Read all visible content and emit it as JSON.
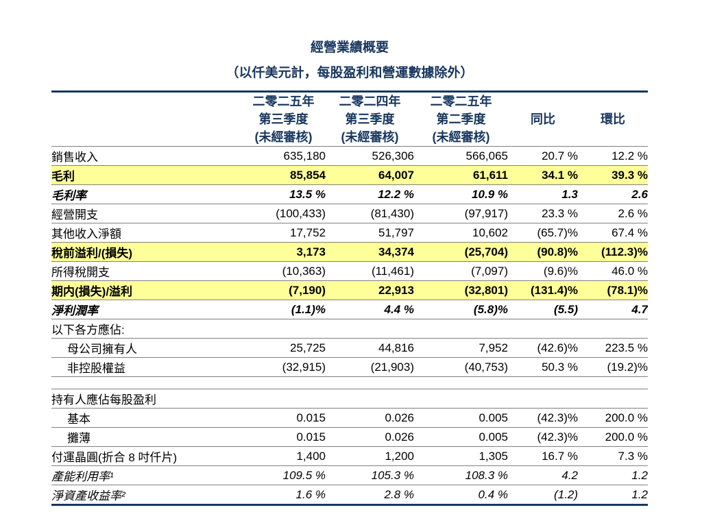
{
  "title": "經營業績概要",
  "subtitle": "（以仟美元計，每股盈利和營運數據除外）",
  "columns": [
    {
      "lines": [
        "二零二五年",
        "第三季度",
        "(未經審核)"
      ]
    },
    {
      "lines": [
        "二零二四年",
        "第三季度",
        "(未經審核)"
      ]
    },
    {
      "lines": [
        "二零二五年",
        "第二季度",
        "(未經審核)"
      ]
    },
    {
      "lines": [
        "同比"
      ]
    },
    {
      "lines": [
        "環比"
      ]
    }
  ],
  "rows": [
    {
      "label": "銷售收入",
      "values": [
        "635,180",
        "526,306",
        "566,065",
        "20.7 %",
        "12.2 %"
      ],
      "style": "normal",
      "indent": false
    },
    {
      "label": "毛利",
      "values": [
        "85,854",
        "64,007",
        "61,611",
        "34.1 %",
        "39.3 %"
      ],
      "style": "highlight-bold",
      "indent": false
    },
    {
      "label": "毛利率",
      "values": [
        "13.5 %",
        "12.2 %",
        "10.9 %",
        "1.3",
        "2.6"
      ],
      "style": "bold-italic",
      "indent": false
    },
    {
      "label": "經營開支",
      "values": [
        "(100,433)",
        "(81,430)",
        "(97,917)",
        "23.3 %",
        "2.6 %"
      ],
      "style": "normal",
      "indent": false
    },
    {
      "label": "其他收入淨額",
      "values": [
        "17,752",
        "51,797",
        "10,602",
        "(65.7)%",
        "67.4 %"
      ],
      "style": "normal",
      "indent": false
    },
    {
      "label": "稅前溢利/(損失)",
      "values": [
        "3,173",
        "34,374",
        "(25,704)",
        "(90.8)%",
        "(112.3)%"
      ],
      "style": "highlight-bold",
      "indent": false
    },
    {
      "label": "所得稅開支",
      "values": [
        "(10,363)",
        "(11,461)",
        "(7,097)",
        "(9.6)%",
        "46.0 %"
      ],
      "style": "normal",
      "indent": false
    },
    {
      "label": "期内(損失)/溢利",
      "values": [
        "(7,190)",
        "22,913",
        "(32,801)",
        "(131.4)%",
        "(78.1)%"
      ],
      "style": "highlight-bold",
      "indent": false
    },
    {
      "label": "淨利潤率",
      "values": [
        "(1.1)%",
        "4.4 %",
        "(5.8)%",
        "(5.5)",
        "4.7"
      ],
      "style": "bold-italic",
      "indent": false
    },
    {
      "label": "以下各方應佔:",
      "values": [
        "",
        "",
        "",
        "",
        ""
      ],
      "style": "normal",
      "indent": false
    },
    {
      "label": "母公司擁有人",
      "values": [
        "25,725",
        "44,816",
        "7,952",
        "(42.6)%",
        "223.5 %"
      ],
      "style": "normal",
      "indent": true
    },
    {
      "label": "非控股權益",
      "values": [
        "(32,915)",
        "(21,903)",
        "(40,753)",
        "50.3 %",
        "(19.2)%"
      ],
      "style": "normal",
      "indent": true
    },
    {
      "label": "",
      "values": [
        "",
        "",
        "",
        "",
        ""
      ],
      "style": "spacer",
      "indent": false
    },
    {
      "label": "持有人應佔每股盈利",
      "values": [
        "",
        "",
        "",
        "",
        ""
      ],
      "style": "normal",
      "indent": false
    },
    {
      "label": "基本",
      "values": [
        "0.015",
        "0.026",
        "0.005",
        "(42.3)%",
        "200.0 %"
      ],
      "style": "normal",
      "indent": true
    },
    {
      "label": "攤薄",
      "values": [
        "0.015",
        "0.026",
        "0.005",
        "(42.3)%",
        "200.0 %"
      ],
      "style": "normal",
      "indent": true
    },
    {
      "label": "付運晶圓(折合 8 吋仟片)",
      "values": [
        "1,400",
        "1,200",
        "1,305",
        "16.7 %",
        "7.3 %"
      ],
      "style": "normal",
      "indent": false
    },
    {
      "label": "產能利用率¹",
      "values": [
        "109.5 %",
        "105.3 %",
        "108.3 %",
        "4.2",
        "1.2"
      ],
      "style": "italic",
      "indent": false
    },
    {
      "label": "淨資產收益率²",
      "values": [
        "1.6 %",
        "2.8 %",
        "0.4 %",
        "(1.2)",
        "1.2"
      ],
      "style": "italic",
      "indent": false
    }
  ],
  "colors": {
    "accent_navy": "#17365E",
    "highlight_yellow": "#FFFF99",
    "rule_gray": "#7f7f7f"
  }
}
